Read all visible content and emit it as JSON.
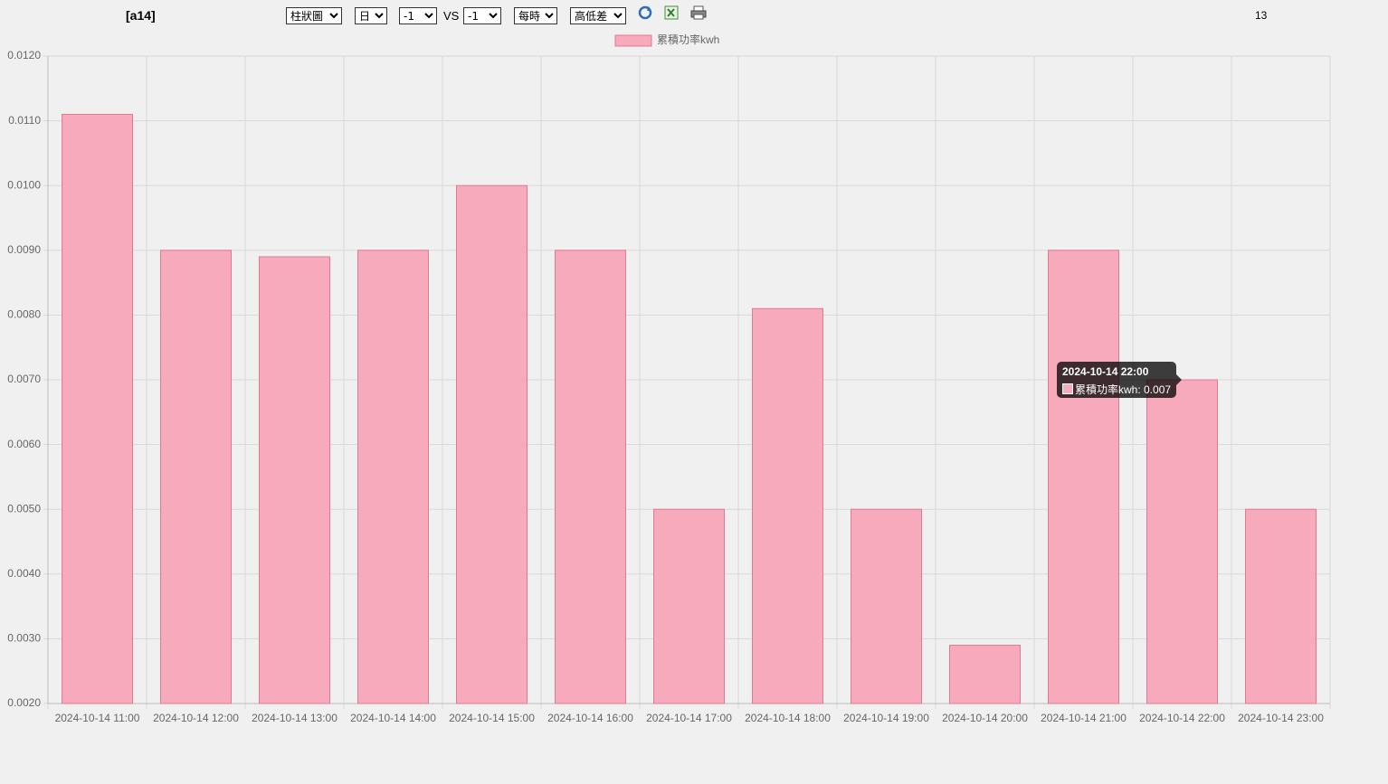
{
  "toolbar": {
    "device": "[a14]",
    "chart_type": "柱狀圖",
    "period": "日",
    "offset_a": "-1",
    "vs": "VS",
    "offset_b": "-1",
    "interval": "每時",
    "mode": "高低差",
    "count": "13"
  },
  "chart_data": {
    "type": "bar",
    "categories": [
      "2024-10-14 11:00",
      "2024-10-14 12:00",
      "2024-10-14 13:00",
      "2024-10-14 14:00",
      "2024-10-14 15:00",
      "2024-10-14 16:00",
      "2024-10-14 17:00",
      "2024-10-14 18:00",
      "2024-10-14 19:00",
      "2024-10-14 20:00",
      "2024-10-14 21:00",
      "2024-10-14 22:00",
      "2024-10-14 23:00"
    ],
    "series": [
      {
        "name": "累積功率kwh",
        "color": "#f7aabb",
        "values": [
          0.0111,
          0.009,
          0.0089,
          0.009,
          0.01,
          0.009,
          0.005,
          0.0081,
          0.005,
          0.0029,
          0.009,
          0.007,
          0.005
        ]
      }
    ],
    "ylim": [
      0.002,
      0.012
    ],
    "yticks": [
      {
        "value": 0.002,
        "label": "0.0020"
      },
      {
        "value": 0.003,
        "label": "0.0030"
      },
      {
        "value": 0.004,
        "label": "0.0040"
      },
      {
        "value": 0.005,
        "label": "0.0050"
      },
      {
        "value": 0.006,
        "label": "0.0060"
      },
      {
        "value": 0.007,
        "label": "0.0070"
      },
      {
        "value": 0.008,
        "label": "0.0080"
      },
      {
        "value": 0.009,
        "label": "0.0090"
      },
      {
        "value": 0.01,
        "label": "0.0100"
      },
      {
        "value": 0.011,
        "label": "0.0110"
      },
      {
        "value": 0.012,
        "label": "0.0120"
      }
    ],
    "grid": true,
    "tooltip": {
      "title": "2024-10-14 22:00",
      "body": "累積功率kwh: 0.007"
    }
  }
}
